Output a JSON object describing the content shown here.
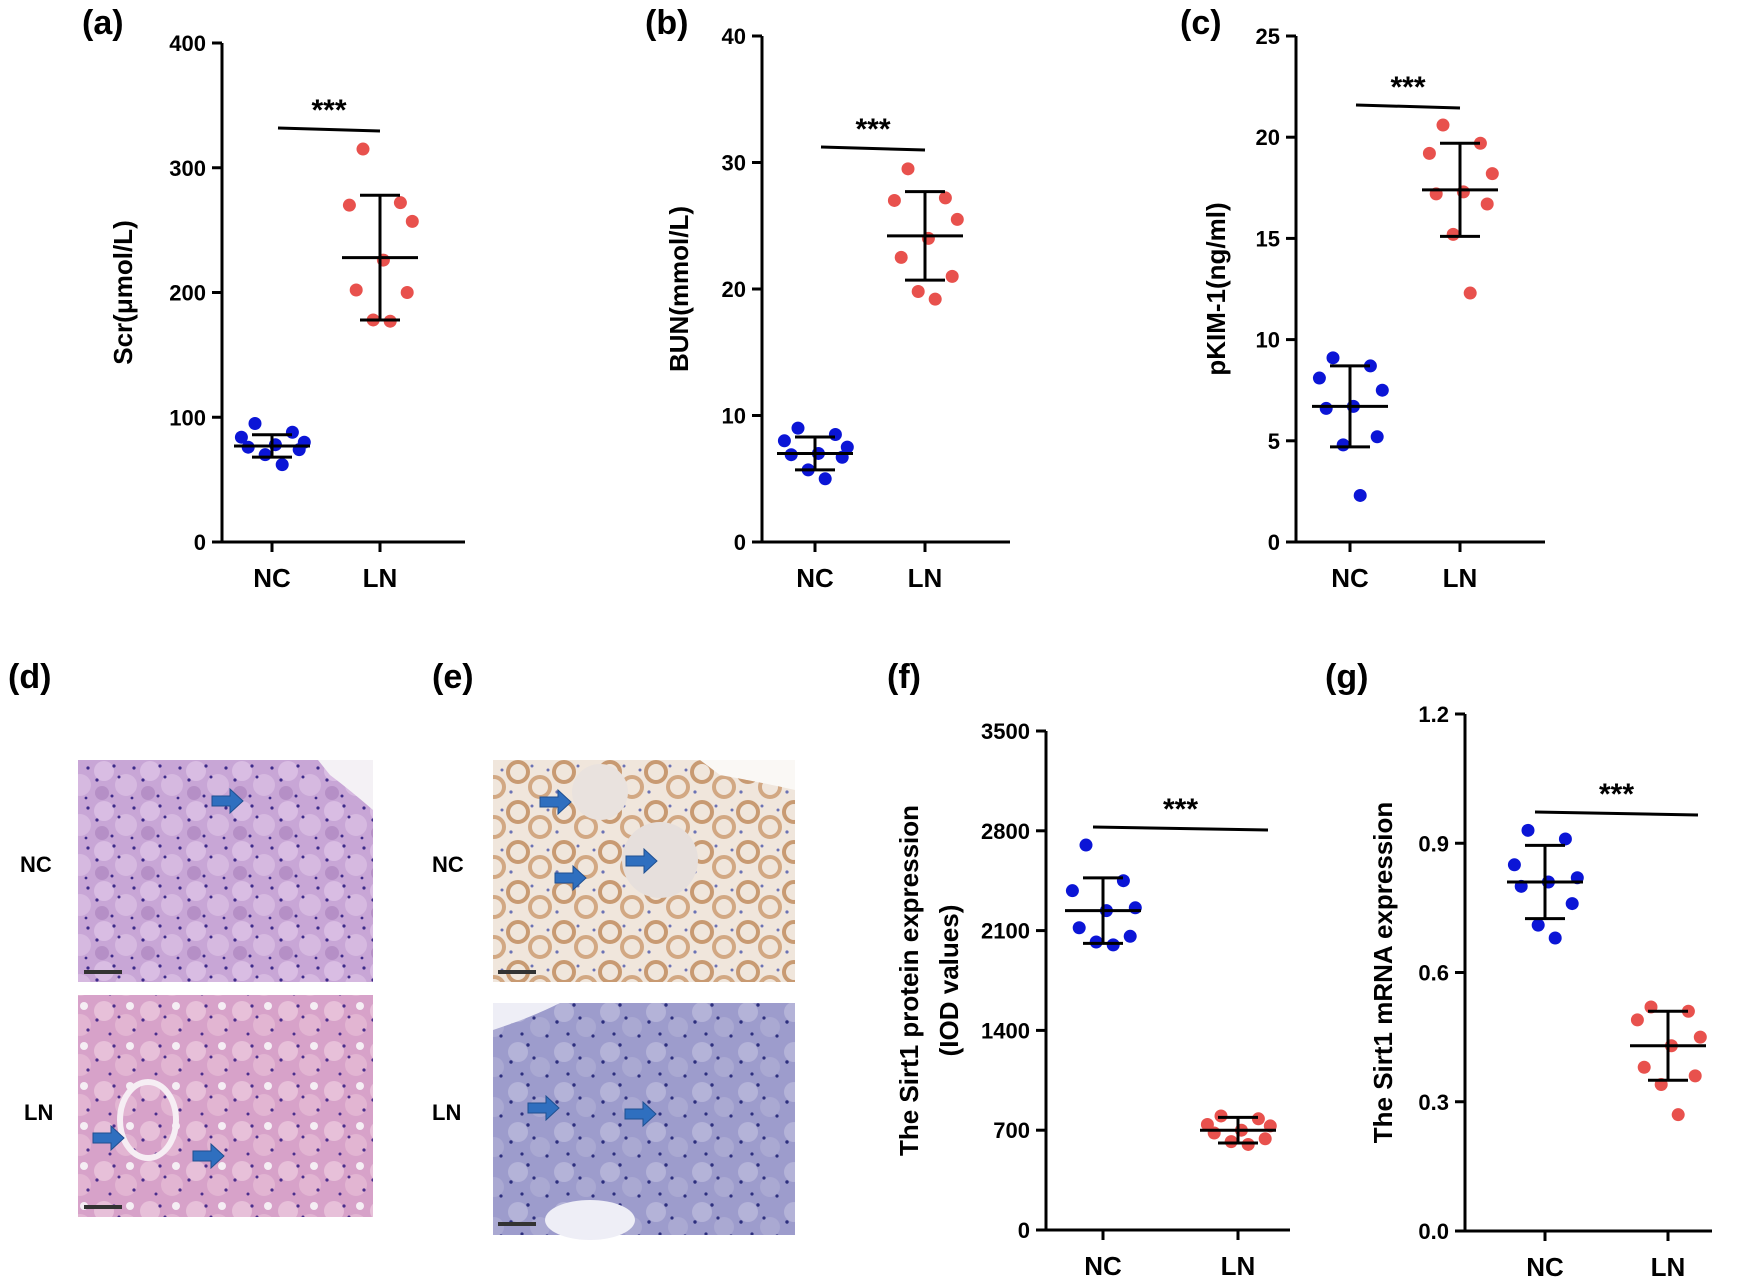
{
  "colors": {
    "nc": "#0b15d6",
    "ln": "#e8514d",
    "axis": "#000000",
    "arrow": "#2f6fbf"
  },
  "chart_data": [
    {
      "panel": "(a)",
      "type": "scatter",
      "ylabel": "Scr(μmol/L)",
      "ylim": [
        0,
        400
      ],
      "yticks": [
        "0",
        "100",
        "200",
        "300",
        "400"
      ],
      "categories": [
        "NC",
        "LN"
      ],
      "significance": "***",
      "series": [
        {
          "name": "NC",
          "values": [
            95,
            88,
            84,
            80,
            78,
            76,
            74,
            70,
            62
          ],
          "mean": 77,
          "sd": 9
        },
        {
          "name": "LN",
          "values": [
            315,
            272,
            270,
            257,
            226,
            202,
            200,
            178,
            177
          ],
          "mean": 228,
          "sd": 50
        }
      ]
    },
    {
      "panel": "(b)",
      "type": "scatter",
      "ylabel": "BUN(mmol/L)",
      "ylim": [
        0,
        40
      ],
      "yticks": [
        "0",
        "10",
        "20",
        "30",
        "40"
      ],
      "categories": [
        "NC",
        "LN"
      ],
      "significance": "***",
      "series": [
        {
          "name": "NC",
          "values": [
            9.0,
            8.5,
            8.0,
            7.5,
            7.0,
            6.9,
            6.7,
            5.7,
            5.0
          ],
          "mean": 7.0,
          "sd": 1.3
        },
        {
          "name": "LN",
          "values": [
            29.5,
            27.2,
            27.0,
            25.5,
            24.0,
            22.5,
            21.0,
            19.8,
            19.2
          ],
          "mean": 24.2,
          "sd": 3.5
        }
      ]
    },
    {
      "panel": "(c)",
      "type": "scatter",
      "ylabel": "pKIM-1(ng/ml)",
      "ylim": [
        0,
        25
      ],
      "yticks": [
        "0",
        "5",
        "10",
        "15",
        "20",
        "25"
      ],
      "categories": [
        "NC",
        "LN"
      ],
      "significance": "***",
      "series": [
        {
          "name": "NC",
          "values": [
            9.1,
            8.7,
            8.1,
            7.5,
            6.7,
            6.6,
            5.2,
            4.8,
            2.3
          ],
          "mean": 6.7,
          "sd": 2.0
        },
        {
          "name": "LN",
          "values": [
            20.6,
            19.7,
            19.2,
            18.2,
            17.3,
            17.2,
            16.7,
            15.2,
            12.3
          ],
          "mean": 17.4,
          "sd": 2.3
        }
      ]
    },
    {
      "panel": "(f)",
      "type": "scatter",
      "ylabel": "The Sirt1 protein expression",
      "ylabel2": "(IOD values)",
      "ylim": [
        0,
        3500
      ],
      "yticks": [
        "0",
        "700",
        "1400",
        "2100",
        "2800",
        "3500"
      ],
      "categories": [
        "NC",
        "LN"
      ],
      "significance": "***",
      "series": [
        {
          "name": "NC",
          "values": [
            2700,
            2450,
            2380,
            2260,
            2240,
            2120,
            2060,
            2020,
            2000
          ],
          "mean": 2240,
          "sd": 230
        },
        {
          "name": "LN",
          "values": [
            800,
            780,
            740,
            730,
            700,
            680,
            640,
            620,
            600
          ],
          "mean": 700,
          "sd": 90
        }
      ]
    },
    {
      "panel": "(g)",
      "type": "scatter",
      "ylabel": "The Sirt1 mRNA expression",
      "ylim": [
        0,
        1.2
      ],
      "yticks": [
        "0.0",
        "0.3",
        "0.6",
        "0.9",
        "1.2"
      ],
      "categories": [
        "NC",
        "LN"
      ],
      "significance": "***",
      "series": [
        {
          "name": "NC",
          "values": [
            0.93,
            0.91,
            0.85,
            0.82,
            0.81,
            0.8,
            0.76,
            0.71,
            0.68
          ],
          "mean": 0.81,
          "sd": 0.085
        },
        {
          "name": "LN",
          "values": [
            0.52,
            0.51,
            0.49,
            0.45,
            0.43,
            0.38,
            0.36,
            0.34,
            0.27
          ],
          "mean": 0.43,
          "sd": 0.08
        }
      ]
    }
  ],
  "micrographs": {
    "d": {
      "panel": "(d)",
      "rows": [
        "NC",
        "LN"
      ]
    },
    "e": {
      "panel": "(e)",
      "rows": [
        "NC",
        "LN"
      ]
    }
  }
}
